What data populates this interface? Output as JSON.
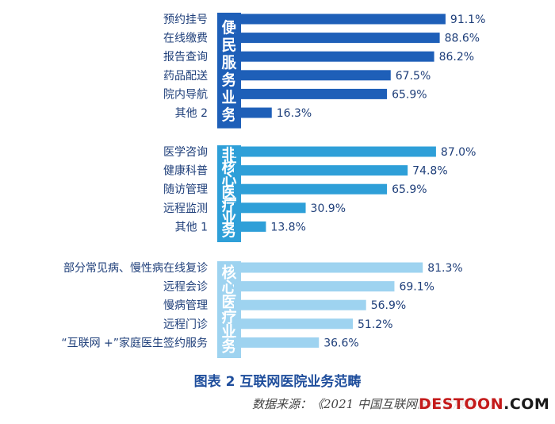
{
  "chart_data": {
    "type": "bar",
    "orientation": "horizontal",
    "title": "图表 2 互联网医院业务范畴",
    "source": "数据来源：《2021 中国互联网医院发展报告》",
    "xlim": [
      0,
      100
    ],
    "groups": [
      {
        "name": "便民服务业务",
        "color": "#1e5fb8",
        "categories": [
          "预约挂号",
          "在线缴费",
          "报告查询",
          "药品配送",
          "院内导航",
          "其他 2"
        ],
        "values": [
          91.1,
          88.6,
          86.2,
          67.5,
          65.9,
          16.3
        ],
        "labels": [
          "91.1%",
          "88.6%",
          "86.2%",
          "67.5%",
          "65.9%",
          "16.3%"
        ]
      },
      {
        "name": "非核心医疗业务",
        "color": "#2e9fd8",
        "categories": [
          "医学咨询",
          "健康科普",
          "随访管理",
          "远程监测",
          "其他 1"
        ],
        "values": [
          87.0,
          74.8,
          65.9,
          30.9,
          13.8
        ],
        "labels": [
          "87.0%",
          "74.8%",
          "65.9%",
          "30.9%",
          "13.8%"
        ]
      },
      {
        "name": "核心医疗业务",
        "color": "#9ed3f0",
        "categories": [
          "部分常见病、慢性病在线复诊",
          "远程会诊",
          "慢病管理",
          "远程门诊",
          "“互联网 +”家庭医生签约服务"
        ],
        "values": [
          81.3,
          69.1,
          56.9,
          51.2,
          36.6
        ],
        "labels": [
          "81.3%",
          "69.1%",
          "56.9%",
          "51.2%",
          "36.6%"
        ]
      }
    ]
  },
  "watermark": {
    "text": "DESTOON",
    "suffix": ".COM"
  }
}
